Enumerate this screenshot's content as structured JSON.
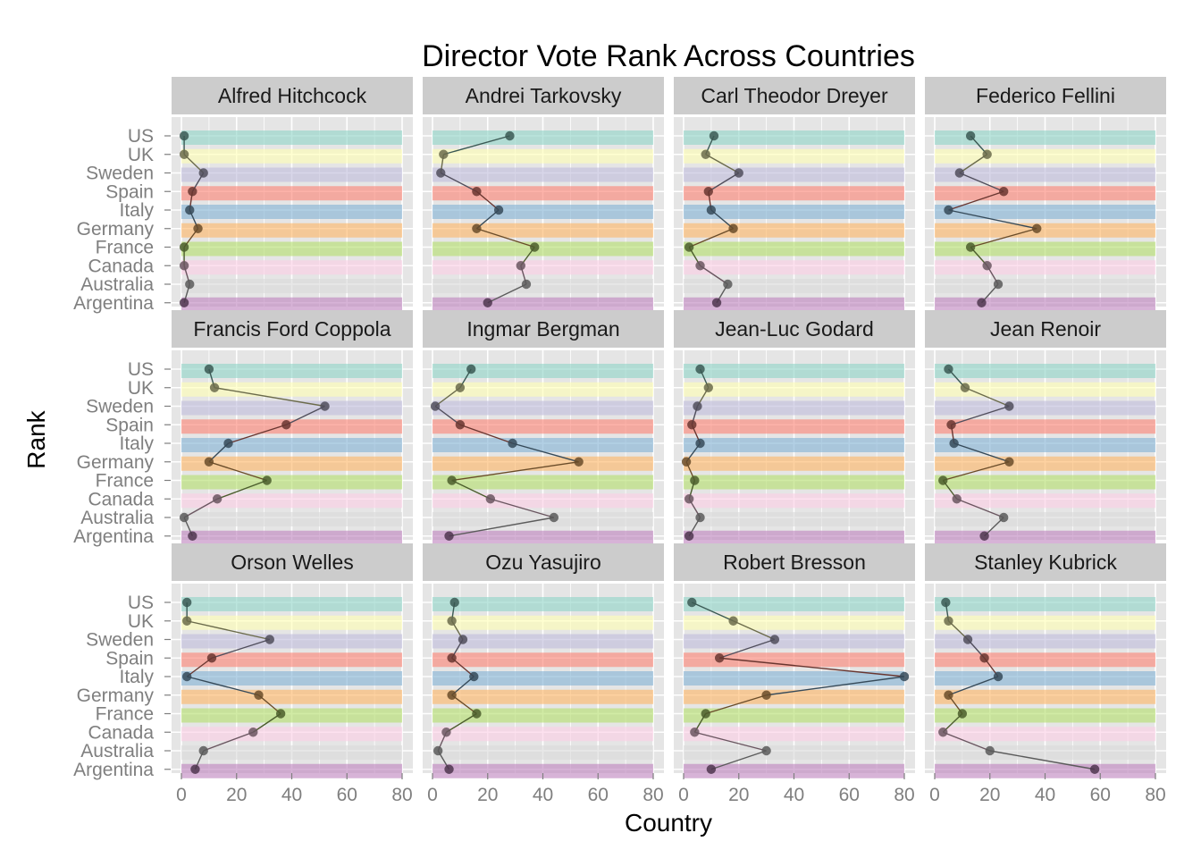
{
  "chart_data": {
    "type": "line",
    "title": "Director Vote Rank Across Countries",
    "xlabel": "Country",
    "ylabel": "Rank",
    "xlim": [
      0,
      80
    ],
    "x_ticks": [
      0,
      20,
      40,
      60,
      80
    ],
    "categories": [
      "US",
      "UK",
      "Sweden",
      "Spain",
      "Italy",
      "Germany",
      "France",
      "Canada",
      "Australia",
      "Argentina"
    ],
    "band_colors": {
      "US": "#8dd3c7",
      "UK": "#ffffb3",
      "Sweden": "#bebada",
      "Spain": "#fb8072",
      "Italy": "#80b1d3",
      "Germany": "#fdb462",
      "France": "#b3de69",
      "Canada": "#fccde5",
      "Australia": "#d9d9d9",
      "Argentina": "#bc80bd"
    },
    "panel_background": "#e5e5e5",
    "strip_background": "#cccccc",
    "grid": true,
    "panels": [
      {
        "name": "Alfred Hitchcock",
        "values": [
          1,
          1,
          8,
          4,
          3,
          6,
          1,
          1,
          3,
          1
        ]
      },
      {
        "name": "Andrei Tarkovsky",
        "values": [
          28,
          4,
          3,
          16,
          24,
          16,
          37,
          32,
          34,
          20
        ]
      },
      {
        "name": "Carl Theodor Dreyer",
        "values": [
          11,
          8,
          20,
          9,
          10,
          18,
          2,
          6,
          16,
          12
        ]
      },
      {
        "name": "Federico Fellini",
        "values": [
          13,
          19,
          9,
          25,
          5,
          37,
          13,
          19,
          23,
          17
        ]
      },
      {
        "name": "Francis Ford Coppola",
        "values": [
          10,
          12,
          52,
          38,
          17,
          10,
          31,
          13,
          1,
          4
        ]
      },
      {
        "name": "Ingmar Bergman",
        "values": [
          14,
          10,
          1,
          10,
          29,
          53,
          7,
          21,
          44,
          6
        ]
      },
      {
        "name": "Jean-Luc Godard",
        "values": [
          6,
          9,
          5,
          3,
          6,
          1,
          4,
          2,
          6,
          2
        ]
      },
      {
        "name": "Jean Renoir",
        "values": [
          5,
          11,
          27,
          6,
          7,
          27,
          3,
          8,
          25,
          18
        ]
      },
      {
        "name": "Orson Welles",
        "values": [
          2,
          2,
          32,
          11,
          2,
          28,
          36,
          26,
          8,
          5
        ]
      },
      {
        "name": "Ozu Yasujiro",
        "values": [
          8,
          7,
          11,
          7,
          15,
          7,
          16,
          5,
          2,
          6
        ]
      },
      {
        "name": "Robert Bresson",
        "values": [
          3,
          18,
          33,
          13,
          80,
          30,
          8,
          4,
          30,
          10
        ]
      },
      {
        "name": "Stanley Kubrick",
        "values": [
          4,
          5,
          12,
          18,
          23,
          5,
          10,
          3,
          20,
          58
        ]
      }
    ]
  }
}
